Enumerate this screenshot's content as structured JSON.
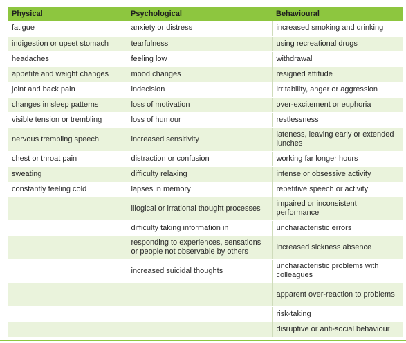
{
  "headers": [
    "Physical",
    "Psychological",
    "Behavioural"
  ],
  "rows": [
    {
      "physical": "fatigue",
      "psychological": "anxiety or distress",
      "behavioural": "increased smoking and drinking",
      "h": 22
    },
    {
      "physical": "indigestion or upset stomach",
      "psychological": "tearfulness",
      "behavioural": "using recreational drugs",
      "h": 22
    },
    {
      "physical": "headaches",
      "psychological": "feeling low",
      "behavioural": "withdrawal",
      "h": 22
    },
    {
      "physical": "appetite and weight changes",
      "psychological": "mood changes",
      "behavioural": "resigned attitude",
      "h": 22
    },
    {
      "physical": "joint and back pain",
      "psychological": "indecision",
      "behavioural": "irritability, anger or aggression",
      "h": 22
    },
    {
      "physical": "changes in sleep patterns",
      "psychological": "loss of motivation",
      "behavioural": "over-excitement or euphoria",
      "h": 22
    },
    {
      "physical": "visible tension or trembling",
      "psychological": "loss of humour",
      "behavioural": "restlessness",
      "h": 22
    },
    {
      "physical": "nervous trembling speech",
      "psychological": "increased sensitivity",
      "behavioural": "lateness, leaving early or extended lunches",
      "h": 34
    },
    {
      "physical": "chest or throat pain",
      "psychological": "distraction or confusion",
      "behavioural": "working far longer hours",
      "h": 22
    },
    {
      "physical": "sweating",
      "psychological": "difficulty relaxing",
      "behavioural": "intense or obsessive activity",
      "h": 22
    },
    {
      "physical": "constantly feeling cold",
      "psychological": "lapses in memory",
      "behavioural": "repetitive speech or activity",
      "h": 22
    },
    {
      "physical": "",
      "psychological": "illogical or irrational thought processes",
      "behavioural": "impaired or inconsistent performance",
      "h": 34
    },
    {
      "physical": "",
      "psychological": "difficulty taking information in",
      "behavioural": "uncharacteristic errors",
      "h": 22
    },
    {
      "physical": "",
      "psychological": "responding to experiences, sensations or people not observable by others",
      "behavioural": "increased sickness absence",
      "h": 34
    },
    {
      "physical": "",
      "psychological": "increased suicidal thoughts",
      "behavioural": "uncharacteristic problems with colleagues",
      "h": 34
    },
    {
      "physical": "",
      "psychological": "",
      "behavioural": "apparent over-reaction to problems",
      "h": 34
    },
    {
      "physical": "",
      "psychological": "",
      "behavioural": "risk-taking",
      "h": 22
    },
    {
      "physical": "",
      "psychological": "",
      "behavioural": "disruptive or anti-social behaviour",
      "h": 22
    }
  ],
  "colors": {
    "header": "#8dc63f",
    "stripe": "#eaf3dc"
  }
}
